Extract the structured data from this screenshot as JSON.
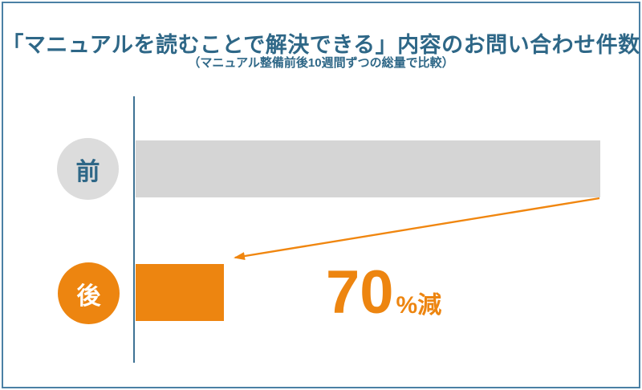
{
  "colors": {
    "title_blue": "#2E6787",
    "axis_blue": "#3E7294",
    "frame_blue": "#4B80A5",
    "bar_gray": "#D5D5D5",
    "accent_orange": "#ED8510",
    "arrow_orange": "#F0860F"
  },
  "chart_data": {
    "type": "bar",
    "orientation": "horizontal",
    "title": "「マニュアルを読むことで解決できる」内容のお問い合わせ件数",
    "subtitle": "（マニュアル整備前後10週間ずつの総量で比較）",
    "categories": [
      "前",
      "後"
    ],
    "values_relative_percent": [
      100,
      30
    ],
    "bar_visual_fraction": [
      1.0,
      0.19
    ],
    "annotation": {
      "value": "70",
      "suffix": "%減"
    },
    "legend": "none",
    "gridlines": false,
    "x_axis": "hidden (no ticks or labels)",
    "y_axis": "vertical baseline line only"
  }
}
